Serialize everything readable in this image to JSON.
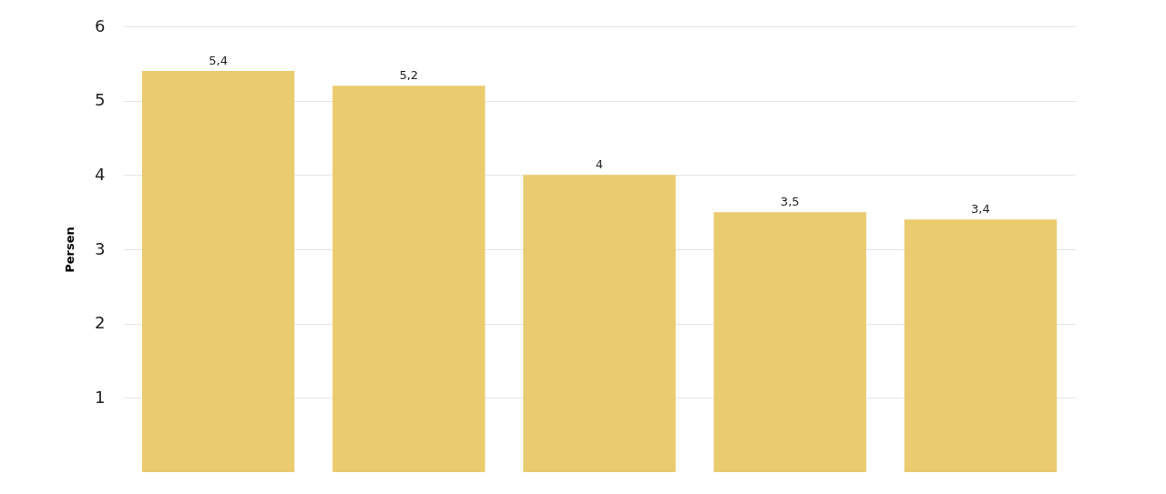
{
  "chart_data": {
    "type": "bar",
    "ylabel": "Persen",
    "categories": [
      null,
      null,
      null,
      null,
      null
    ],
    "values": [
      5.4,
      5.2,
      4,
      3.5,
      3.4
    ],
    "value_labels": [
      "5,4",
      "5,2",
      "4",
      "3,5",
      "3,4"
    ],
    "color": "#eacb6f",
    "ylim": [
      0,
      6
    ],
    "yticks": [
      1,
      2,
      3,
      4,
      5,
      6
    ],
    "grid": "y"
  }
}
